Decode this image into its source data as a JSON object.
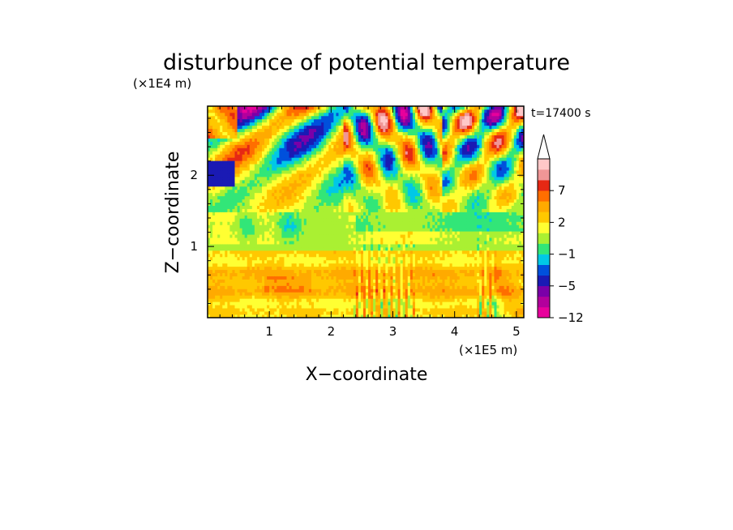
{
  "chart_data": {
    "type": "heatmap",
    "title": "disturbunce of potential temperature",
    "xlabel": "X−coordinate",
    "ylabel": "Z−coordinate",
    "x_scale_label": "(×1E5 m)",
    "y_scale_label": "(×1E4 m)",
    "time_label": "t=17400 s",
    "xlim": [
      0,
      5.12
    ],
    "ylim": [
      0,
      2.97
    ],
    "x_ticks": [
      1,
      2,
      3,
      4,
      5
    ],
    "x_tick_labels": [
      "1",
      "2",
      "3",
      "4",
      "5"
    ],
    "y_ticks": [
      1,
      2
    ],
    "y_tick_labels": [
      "1",
      "2"
    ],
    "colorbar": {
      "tick_labels": [
        "7",
        "2",
        "−1",
        "−5",
        "−12"
      ],
      "colors": [
        "#e8009c",
        "#b3009c",
        "#7a00a8",
        "#1a1ab4",
        "#0050dc",
        "#00c8e6",
        "#32e678",
        "#aaf032",
        "#ffff32",
        "#ffc800",
        "#ffaa00",
        "#ff6e00",
        "#e62814",
        "#f09696",
        "#ffc8c8"
      ],
      "max_extension_color": "#ffffff"
    }
  }
}
